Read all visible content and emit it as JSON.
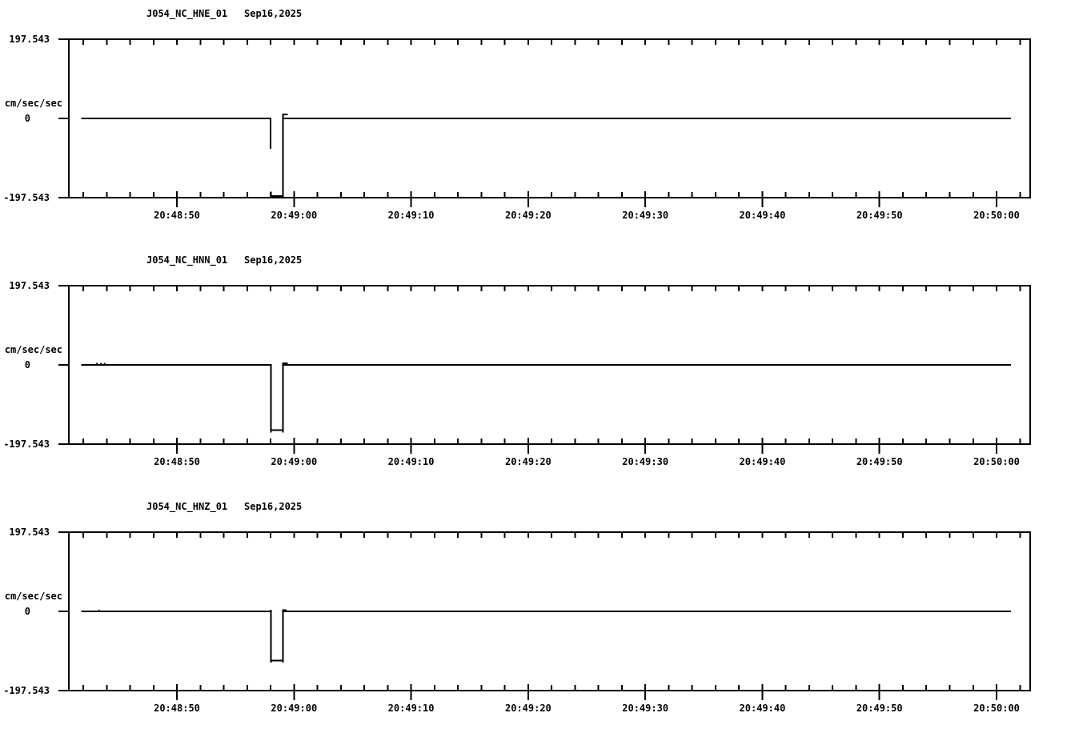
{
  "page": {
    "background_color": "#ffffff",
    "line_color": "#000000",
    "description": "Three-channel strong-motion seismograph record display"
  },
  "chart_data": [
    {
      "type": "line",
      "station": "J054_NC_HNE_01",
      "date": "Sep16,2025",
      "ylabel": "cm/sec/sec",
      "y_max_label": "197.543",
      "y_zero_label": "0",
      "y_min_label": "-197.543",
      "ylim": [
        -197.543,
        197.543
      ],
      "x_unit": "seconds from axis start (~20:48:40.8)",
      "xlim_sec": [
        0,
        82.1
      ],
      "xticks": [
        {
          "t": 9.23,
          "label": "20:48:50"
        },
        {
          "t": 19.23,
          "label": "20:49:00"
        },
        {
          "t": 29.23,
          "label": "20:49:10"
        },
        {
          "t": 39.23,
          "label": "20:49:20"
        },
        {
          "t": 49.23,
          "label": "20:49:30"
        },
        {
          "t": 59.23,
          "label": "20:49:40"
        },
        {
          "t": 69.23,
          "label": "20:49:50"
        },
        {
          "t": 79.23,
          "label": "20:50:00"
        }
      ],
      "minor_tick_start_sec": 1.23,
      "minor_tick_step_sec": 2,
      "trace": [
        [
          [
            1.05,
            0
          ],
          [
            17.22,
            0
          ],
          [
            17.22,
            -76
          ]
        ],
        [
          [
            17.25,
            -183
          ],
          [
            17.25,
            -194
          ],
          [
            18.28,
            -194
          ],
          [
            18.28,
            10
          ],
          [
            18.7,
            10
          ]
        ],
        [
          [
            18.28,
            0
          ],
          [
            80.45,
            0
          ]
        ]
      ],
      "noise_dots": []
    },
    {
      "type": "line",
      "station": "J054_NC_HNN_01",
      "date": "Sep16,2025",
      "ylabel": "cm/sec/sec",
      "y_max_label": "197.543",
      "y_zero_label": "0",
      "y_min_label": "-197.543",
      "ylim": [
        -197.543,
        197.543
      ],
      "x_unit": "seconds from axis start (~20:48:40.8)",
      "xlim_sec": [
        0,
        82.1
      ],
      "xticks": [
        {
          "t": 9.23,
          "label": "20:48:50"
        },
        {
          "t": 19.23,
          "label": "20:49:00"
        },
        {
          "t": 29.23,
          "label": "20:49:10"
        },
        {
          "t": 39.23,
          "label": "20:49:20"
        },
        {
          "t": 49.23,
          "label": "20:49:30"
        },
        {
          "t": 59.23,
          "label": "20:49:40"
        },
        {
          "t": 69.23,
          "label": "20:49:50"
        },
        {
          "t": 79.23,
          "label": "20:50:00"
        }
      ],
      "minor_tick_start_sec": 1.23,
      "minor_tick_step_sec": 2,
      "trace": [
        [
          [
            1.05,
            0
          ],
          [
            17.25,
            0
          ],
          [
            17.25,
            -163
          ],
          [
            17.25,
            -169
          ],
          [
            17.25,
            -163
          ],
          [
            18.28,
            -163
          ],
          [
            18.28,
            -169
          ],
          [
            18.28,
            -163
          ],
          [
            18.28,
            4
          ],
          [
            18.7,
            4
          ]
        ],
        [
          [
            18.28,
            0
          ],
          [
            80.45,
            0
          ]
        ]
      ],
      "noise_dots": [
        [
          2.4,
          3
        ],
        [
          2.75,
          3
        ],
        [
          3.05,
          3
        ]
      ]
    },
    {
      "type": "line",
      "station": "J054_NC_HNZ_01",
      "date": "Sep16,2025",
      "ylabel": "cm/sec/sec",
      "y_max_label": "197.543",
      "y_zero_label": "0",
      "y_min_label": "-197.543",
      "ylim": [
        -197.543,
        197.543
      ],
      "x_unit": "seconds from axis start (~20:48:40.8)",
      "xlim_sec": [
        0,
        82.1
      ],
      "xticks": [
        {
          "t": 9.23,
          "label": "20:48:50"
        },
        {
          "t": 19.23,
          "label": "20:49:00"
        },
        {
          "t": 29.23,
          "label": "20:49:10"
        },
        {
          "t": 39.23,
          "label": "20:49:20"
        },
        {
          "t": 49.23,
          "label": "20:49:30"
        },
        {
          "t": 59.23,
          "label": "20:49:40"
        },
        {
          "t": 69.23,
          "label": "20:49:50"
        },
        {
          "t": 79.23,
          "label": "20:50:00"
        }
      ],
      "minor_tick_start_sec": 1.23,
      "minor_tick_step_sec": 2,
      "trace": [
        [
          [
            1.05,
            0
          ],
          [
            17.25,
            0
          ],
          [
            17.25,
            4
          ],
          [
            17.25,
            -123
          ],
          [
            17.25,
            -128
          ],
          [
            17.25,
            -123
          ],
          [
            18.28,
            -123
          ],
          [
            18.28,
            -128
          ],
          [
            18.28,
            -123
          ],
          [
            18.28,
            3
          ],
          [
            18.6,
            3
          ]
        ],
        [
          [
            18.28,
            0
          ],
          [
            80.45,
            0
          ]
        ]
      ],
      "noise_dots": [
        [
          2.6,
          2
        ]
      ]
    }
  ]
}
